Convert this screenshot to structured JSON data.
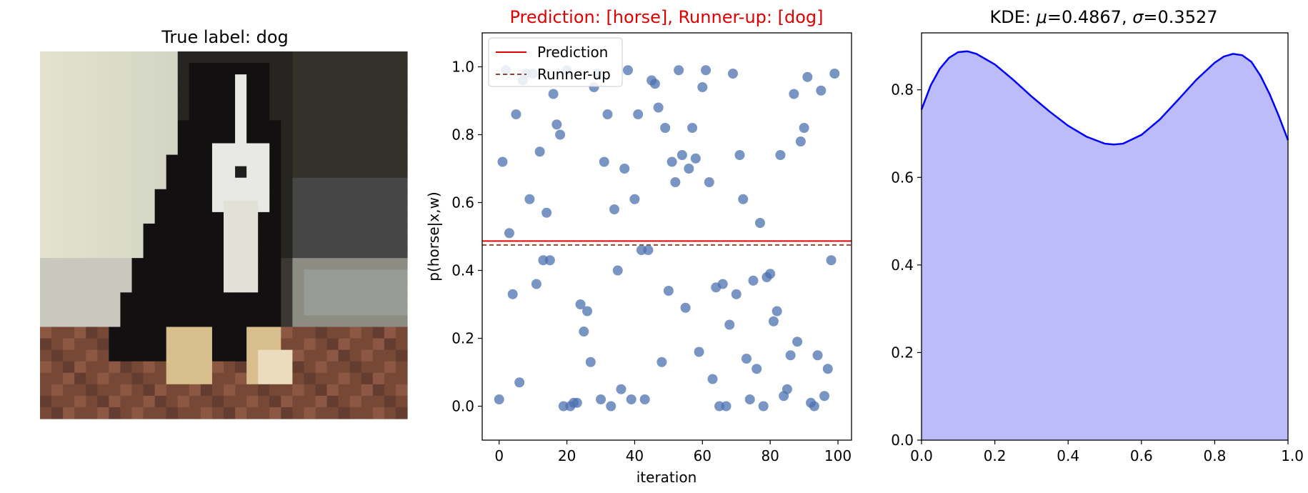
{
  "panel1": {
    "title": "True label: dog",
    "image_alt": "pixelated CIFAR dog image"
  },
  "chart_data": [
    {
      "type": "scatter",
      "title": "Prediction: [horse], Runner-up: [dog]",
      "title_color": "#e00000",
      "xlabel": "iteration",
      "ylabel": "p(horse|x,w)",
      "xlim": [
        -5,
        104
      ],
      "ylim": [
        -0.1,
        1.1
      ],
      "xticks": [
        0,
        20,
        40,
        60,
        80,
        100
      ],
      "xtick_labels": [
        "0",
        "20",
        "40",
        "60",
        "80",
        "100"
      ],
      "yticks": [
        0.0,
        0.2,
        0.4,
        0.6,
        0.8,
        1.0
      ],
      "ytick_labels": [
        "0.0",
        "0.2",
        "0.4",
        "0.6",
        "0.8",
        "1.0"
      ],
      "point_color": "#4c72b0",
      "hlines": [
        {
          "name": "Prediction",
          "y": 0.4867,
          "color": "#e00000",
          "style": "solid"
        },
        {
          "name": "Runner-up",
          "y": 0.475,
          "color": "#8c4a3a",
          "style": "dashed"
        }
      ],
      "legend": {
        "placement": "top-left",
        "entries": [
          "Prediction",
          "Runner-up"
        ]
      },
      "x": [
        0,
        1,
        2,
        3,
        4,
        5,
        6,
        7,
        8,
        9,
        10,
        11,
        12,
        13,
        14,
        15,
        16,
        17,
        18,
        19,
        20,
        21,
        22,
        23,
        24,
        25,
        26,
        27,
        28,
        29,
        30,
        31,
        32,
        33,
        34,
        35,
        36,
        37,
        38,
        39,
        40,
        41,
        42,
        43,
        44,
        45,
        46,
        47,
        48,
        49,
        50,
        51,
        52,
        53,
        54,
        55,
        56,
        57,
        58,
        59,
        60,
        61,
        62,
        63,
        64,
        65,
        66,
        67,
        68,
        69,
        70,
        71,
        72,
        73,
        74,
        75,
        76,
        77,
        78,
        79,
        80,
        81,
        82,
        83,
        84,
        85,
        86,
        87,
        88,
        89,
        90,
        91,
        92,
        93,
        94,
        95,
        96,
        97,
        98,
        99
      ],
      "y": [
        0.02,
        0.72,
        0.99,
        0.51,
        0.33,
        0.86,
        0.07,
        0.96,
        0.98,
        0.61,
        0.98,
        0.36,
        0.75,
        0.43,
        0.57,
        0.43,
        0.92,
        0.83,
        0.8,
        0.0,
        0.99,
        0.0,
        0.01,
        0.01,
        0.3,
        0.22,
        0.28,
        0.13,
        0.94,
        0.98,
        0.02,
        0.72,
        0.86,
        0.0,
        0.58,
        0.4,
        0.05,
        0.7,
        0.99,
        0.02,
        0.61,
        0.86,
        0.46,
        0.02,
        0.46,
        0.96,
        0.95,
        0.88,
        0.13,
        0.82,
        0.34,
        0.72,
        0.66,
        0.99,
        0.74,
        0.29,
        0.7,
        0.82,
        0.73,
        0.16,
        0.94,
        0.99,
        0.66,
        0.08,
        0.35,
        0.0,
        0.36,
        0.0,
        0.24,
        0.98,
        0.33,
        0.74,
        0.61,
        0.14,
        0.02,
        0.37,
        0.11,
        0.54,
        0.0,
        0.38,
        0.39,
        0.25,
        0.28,
        0.74,
        0.03,
        0.05,
        0.15,
        0.92,
        0.19,
        0.78,
        0.82,
        0.97,
        0.01,
        0.0,
        0.15,
        0.93,
        0.03,
        0.11,
        0.43,
        0.98
      ]
    },
    {
      "type": "area",
      "title": "KDE: μ=0.4867, σ=0.3527",
      "title_parts": {
        "prefix": "KDE: ",
        "mu_sym": "μ",
        "mu_val": "=0.4867, ",
        "sigma_sym": "σ",
        "sigma_val": "=0.3527"
      },
      "xlim": [
        0.0,
        1.0
      ],
      "ylim": [
        0.0,
        0.93
      ],
      "xticks": [
        0.0,
        0.2,
        0.4,
        0.6,
        0.8,
        1.0
      ],
      "xtick_labels": [
        "0.0",
        "0.2",
        "0.4",
        "0.6",
        "0.8",
        "1.0"
      ],
      "yticks": [
        0.0,
        0.2,
        0.4,
        0.6,
        0.8
      ],
      "ytick_labels": [
        "0.0",
        "0.2",
        "0.4",
        "0.6",
        "0.8"
      ],
      "line_color": "#0000ff",
      "fill_color": "#bcbcfb",
      "x": [
        0.0,
        0.025,
        0.05,
        0.075,
        0.1,
        0.125,
        0.15,
        0.2,
        0.25,
        0.3,
        0.35,
        0.4,
        0.45,
        0.5,
        0.525,
        0.55,
        0.6,
        0.65,
        0.7,
        0.75,
        0.8,
        0.825,
        0.85,
        0.875,
        0.9,
        0.925,
        0.95,
        0.975,
        1.0
      ],
      "y": [
        0.755,
        0.81,
        0.848,
        0.873,
        0.886,
        0.888,
        0.882,
        0.858,
        0.823,
        0.785,
        0.75,
        0.718,
        0.693,
        0.677,
        0.675,
        0.677,
        0.697,
        0.732,
        0.777,
        0.823,
        0.862,
        0.876,
        0.882,
        0.879,
        0.864,
        0.832,
        0.79,
        0.74,
        0.685
      ]
    }
  ]
}
